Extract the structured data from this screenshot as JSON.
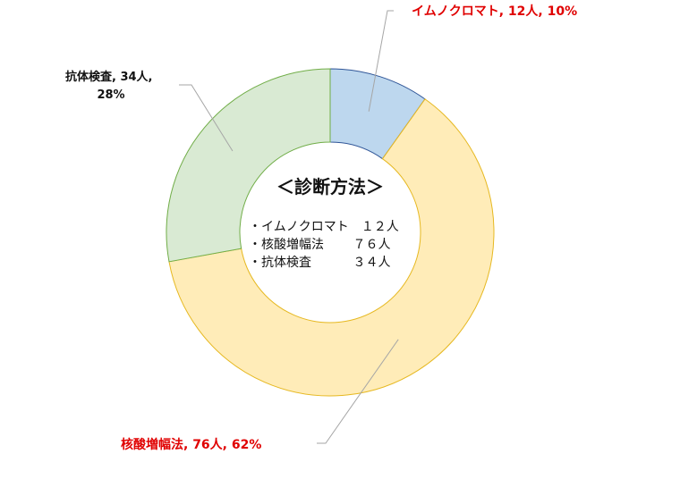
{
  "chart_data": {
    "type": "pie",
    "variant": "donut",
    "categories": [
      "イムノクロマト",
      "抗体検査",
      "核酸増幅法"
    ],
    "values": [
      12,
      34,
      76
    ],
    "percents": [
      "10%",
      "28%",
      "62%"
    ],
    "unit": "人",
    "colors": {
      "イムノクロマト": {
        "fill": "#bdd7ee",
        "stroke": "#2f5597"
      },
      "核酸増幅法": {
        "fill": "#ffecb8",
        "stroke": "#e6b820"
      },
      "抗体検査": {
        "fill": "#d9ead3",
        "stroke": "#70ad47"
      }
    },
    "data_labels": {
      "immuno": [
        "イムノクロマト, 12人, 10%"
      ],
      "nucleic": [
        "核酸増幅法, 76人, 62%"
      ],
      "antibody": [
        "抗体検査, 34人,",
        "28%"
      ]
    },
    "label_colors": {
      "immuno": "#e00000",
      "nucleic": "#e00000",
      "antibody": "#111111"
    },
    "center_title": "＜診断方法＞",
    "center_lines": [
      "・イムノクロマト　１２人",
      "・核酸増幅法　　 ７６人",
      "・抗体検査　　　 ３４人"
    ]
  }
}
